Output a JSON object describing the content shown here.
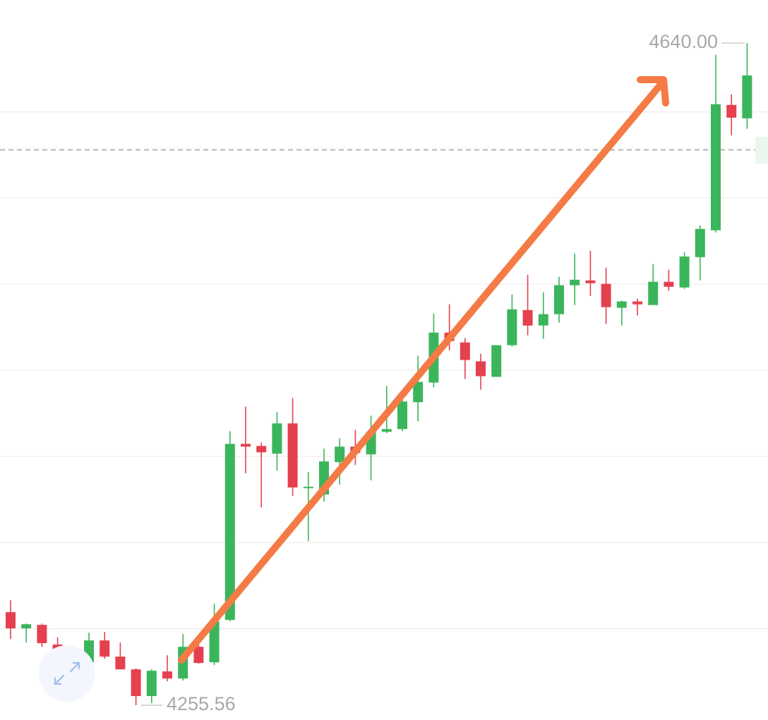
{
  "chart_data": {
    "type": "candlestick",
    "up_color": "#3bb55b",
    "down_color": "#e5404f",
    "ylim": [
      4247,
      4665
    ],
    "gridlines": [
      4300,
      4350,
      4400,
      4450,
      4500,
      4550,
      4600
    ],
    "reference_line": 4578,
    "max_label": {
      "value": 4640,
      "label": "4640.00"
    },
    "min_label": {
      "value": 4255.56,
      "label": "4255.56"
    },
    "open": [
      4309.6,
      4300.2,
      4302.2,
      4290.8,
      4286.7,
      4280.5,
      4293.2,
      4283.8,
      4276.4,
      4260.9,
      4275.2,
      4271.1,
      4289.5,
      4280.5,
      4305.1,
      4407.3,
      4406.1,
      4401.6,
      4419.2,
      4381.6,
      4377.9,
      4396.7,
      4405.7,
      4401.2,
      4414.3,
      4415.9,
      4431.5,
      4442.9,
      4471.9,
      4466.2,
      4455.2,
      4446.2,
      4464.6,
      4485.0,
      4476.0,
      4482.6,
      4499.4,
      4502.2,
      4500.2,
      4486.3,
      4490.0,
      4487.9,
      4501.4,
      4498.1,
      4515.7,
      4531.3,
      4604.1,
      4596.3
    ],
    "high": [
      4316.5,
      4303.0,
      4303.0,
      4294.9,
      4287.9,
      4297.7,
      4298.1,
      4292.0,
      4277.0,
      4276.4,
      4284.6,
      4296.9,
      4290.8,
      4314.5,
      4414.7,
      4429.0,
      4408.1,
      4425.7,
      4433.9,
      4391.0,
      4404.5,
      4410.6,
      4415.5,
      4423.7,
      4440.9,
      4436.8,
      4458.5,
      4483.0,
      4488.3,
      4468.7,
      4459.7,
      4464.6,
      4494.0,
      4505.5,
      4495.3,
      4504.3,
      4517.8,
      4519.4,
      4509.6,
      4490.4,
      4491.6,
      4511.6,
      4508.4,
      4518.6,
      4534.1,
      4633.1,
      4610.2,
      4640.0
    ],
    "low": [
      4294.0,
      4292.0,
      4289.5,
      4285.4,
      4273.2,
      4277.3,
      4282.6,
      4276.4,
      4255.56,
      4256.8,
      4269.5,
      4269.9,
      4279.7,
      4278.9,
      4304.3,
      4390.2,
      4370.5,
      4391.8,
      4377.1,
      4350.9,
      4373.8,
      4383.6,
      4395.1,
      4386.1,
      4413.5,
      4414.7,
      4420.4,
      4440.1,
      4461.7,
      4445.0,
      4438.8,
      4446.2,
      4463.8,
      4470.3,
      4468.3,
      4477.7,
      4487.9,
      4493.2,
      4476.9,
      4476.0,
      4481.8,
      4487.9,
      4496.1,
      4497.3,
      4502.2,
      4530.0,
      4586.5,
      4590.2
    ],
    "close": [
      4300.2,
      4302.6,
      4291.6,
      4287.5,
      4280.5,
      4293.2,
      4283.8,
      4276.4,
      4260.9,
      4275.6,
      4271.1,
      4289.5,
      4280.1,
      4304.3,
      4407.3,
      4405.7,
      4402.4,
      4419.2,
      4382.0,
      4382.4,
      4397.1,
      4405.7,
      4402.0,
      4414.3,
      4415.9,
      4431.9,
      4443.3,
      4471.9,
      4467.0,
      4456.0,
      4446.6,
      4464.6,
      4485.4,
      4476.0,
      4482.6,
      4499.4,
      4502.6,
      4500.6,
      4486.7,
      4490.0,
      4488.3,
      4501.4,
      4498.5,
      4516.1,
      4532.1,
      4604.5,
      4596.7,
      4621.2
    ]
  }
}
